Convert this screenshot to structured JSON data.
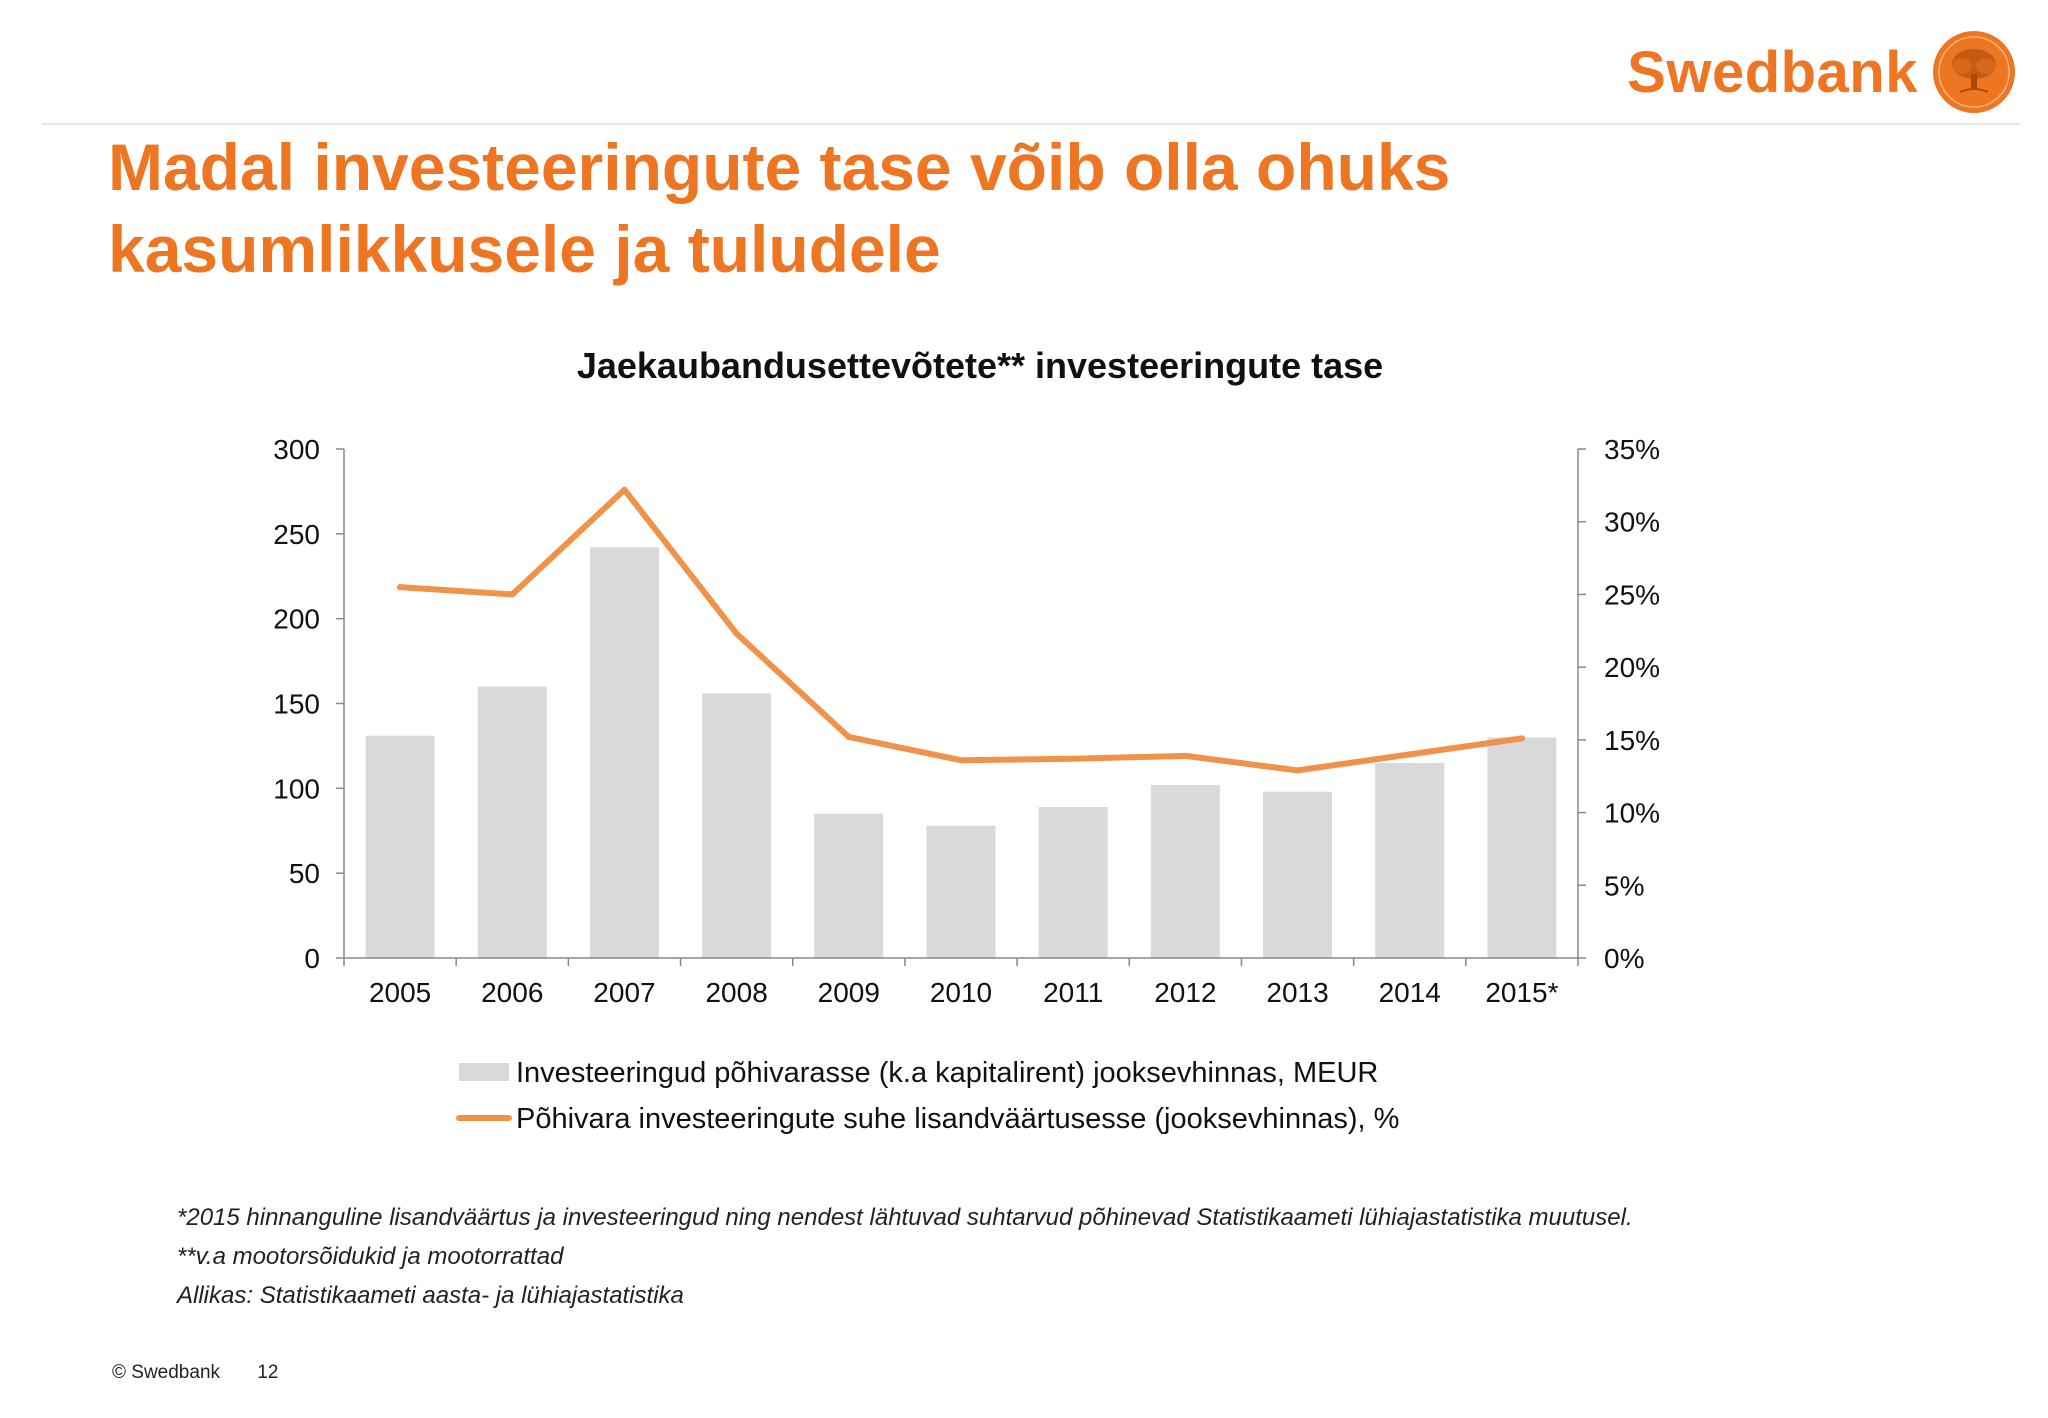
{
  "brand": {
    "name": "Swedbank",
    "color": "#ee7623",
    "logo_icon": "oak-tree-seal-icon"
  },
  "slide": {
    "title": "Madal investeeringute tase võib olla ohuks kasumlikkusele ja tuludele"
  },
  "chart_data": {
    "type": "bar",
    "title": "Jaekaubandusettevõtete** investeeringute tase",
    "categories": [
      "2005",
      "2006",
      "2007",
      "2008",
      "2009",
      "2010",
      "2011",
      "2012",
      "2013",
      "2014",
      "2015*"
    ],
    "series": [
      {
        "name": "Investeeringud põhivarasse (k.a kapitalirent) jooksevhinnas, MEUR",
        "type": "bar",
        "axis": "left",
        "color": "#d9d9db",
        "values": [
          131,
          160,
          242,
          156,
          85,
          78,
          89,
          102,
          98,
          115,
          130
        ]
      },
      {
        "name": "Põhivara investeeringute suhe lisandväärtusesse (jooksevhinnas), %",
        "type": "line",
        "axis": "right",
        "color": "#f0924a",
        "values": [
          25.5,
          25.0,
          32.2,
          22.3,
          15.2,
          13.6,
          13.7,
          13.9,
          12.9,
          14.0,
          15.1
        ]
      }
    ],
    "y_left": {
      "min": 0,
      "max": 300,
      "ticks": [
        "0",
        "50",
        "100",
        "150",
        "200",
        "250",
        "300"
      ]
    },
    "y_right": {
      "min": 0,
      "max": 35,
      "ticks": [
        "0%",
        "5%",
        "10%",
        "15%",
        "20%",
        "25%",
        "30%",
        "35%"
      ]
    },
    "grid": false,
    "legend_position": "bottom"
  },
  "notes": {
    "line1": "*2015 hinnanguline lisandväärtus ja investeeringud ning nendest lähtuvad suhtarvud põhinevad Statistikaameti lühiajastatistika muutusel.",
    "line2": "**v.a mootorsõidukid ja mootorrattad",
    "line3": "Allikas: Statistikaameti aasta- ja lühiajastatistika"
  },
  "footer": {
    "copyright": "© Swedbank",
    "page": "12"
  }
}
